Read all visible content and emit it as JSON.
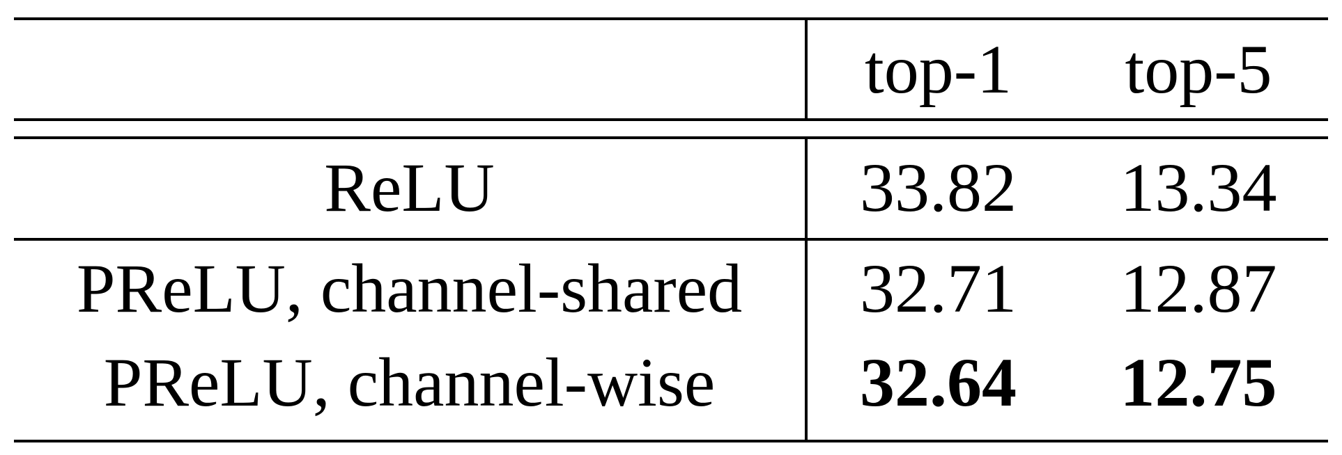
{
  "table": {
    "header": {
      "method": "",
      "top1": "top-1",
      "top5": "top-5"
    },
    "rows": [
      {
        "method": "ReLU",
        "top1": "33.82",
        "top5": "13.34",
        "best": false
      },
      {
        "method": "PReLU, channel-shared",
        "top1": "32.71",
        "top5": "12.87",
        "best": false
      },
      {
        "method": "PReLU, channel-wise",
        "top1": "32.64",
        "top5": "12.75",
        "best": true
      }
    ]
  }
}
